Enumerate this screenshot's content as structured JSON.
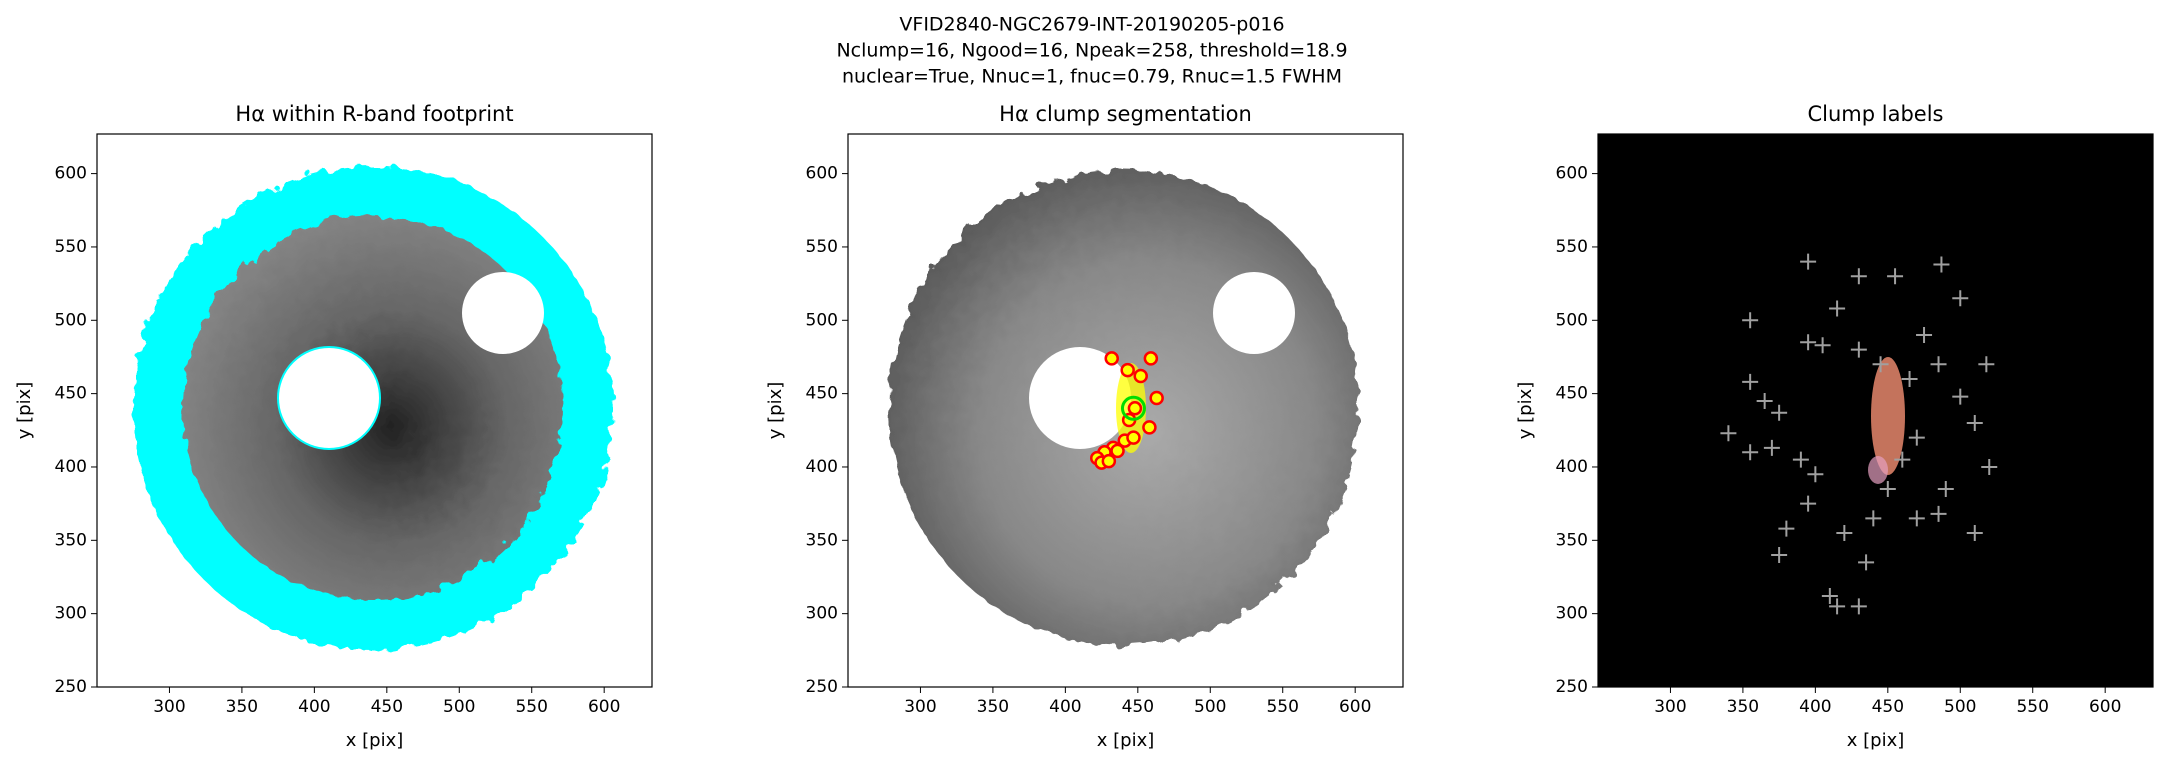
{
  "title_lines": [
    "VFID2840-NGC2679-INT-20190205-p016",
    "Nclump=16, Ngood=16, Npeak=258, threshold=18.9",
    "nuclear=True, Nnuc=1, fnuc=0.79, Rnuc=1.5 FWHM"
  ],
  "chart_data": [
    {
      "type": "image",
      "title": "Hα within R-band footprint",
      "xlabel": "x [pix]",
      "ylabel": "y [pix]",
      "xlim": [
        250,
        633
      ],
      "ylim": [
        250,
        627
      ],
      "xticks": [
        300,
        350,
        400,
        450,
        500,
        550,
        600
      ],
      "yticks": [
        250,
        300,
        350,
        400,
        450,
        500,
        550,
        600
      ]
    },
    {
      "type": "image",
      "title": "Hα clump segmentation",
      "xlabel": "x [pix]",
      "ylabel": "y [pix]",
      "xlim": [
        250,
        633
      ],
      "ylim": [
        250,
        627
      ],
      "xticks": [
        300,
        350,
        400,
        450,
        500,
        550,
        600
      ],
      "yticks": [
        250,
        300,
        350,
        400,
        450,
        500,
        550,
        600
      ],
      "clumps": {
        "color": "#ff0000",
        "x": [
          432,
          443,
          452,
          459,
          463,
          448,
          458,
          441,
          433,
          427,
          422,
          425,
          430,
          436,
          447,
          444
        ],
        "y": [
          474,
          466,
          462,
          474,
          447,
          440,
          427,
          418,
          413,
          410,
          406,
          403,
          404,
          411,
          420,
          432
        ]
      },
      "nucleus": {
        "color": "#00dd00",
        "x": [
          447
        ],
        "y": [
          440
        ]
      }
    },
    {
      "type": "image",
      "title": "Clump labels",
      "xlabel": "x [pix]",
      "ylabel": "y [pix]",
      "xlim": [
        250,
        633
      ],
      "ylim": [
        250,
        627
      ],
      "xticks": [
        300,
        350,
        400,
        450,
        500,
        550,
        600
      ],
      "yticks": [
        250,
        300,
        350,
        400,
        450,
        500,
        550,
        600
      ],
      "peaks": {
        "color": "#a0a0a0",
        "x": [
          355,
          395,
          430,
          455,
          487,
          500,
          415,
          395,
          405,
          430,
          475,
          485,
          518,
          500,
          510,
          520,
          510,
          490,
          485,
          470,
          355,
          365,
          375,
          340,
          355,
          370,
          390,
          400,
          395,
          380,
          375,
          410,
          415,
          430,
          435,
          420,
          440,
          450,
          460,
          470,
          445,
          465
        ],
        "y": [
          500,
          540,
          530,
          530,
          538,
          515,
          508,
          485,
          483,
          480,
          490,
          470,
          470,
          448,
          430,
          400,
          355,
          385,
          368,
          365,
          458,
          445,
          437,
          423,
          410,
          413,
          405,
          395,
          375,
          358,
          340,
          312,
          305,
          305,
          335,
          355,
          365,
          385,
          405,
          420,
          470,
          460
        ]
      }
    }
  ]
}
